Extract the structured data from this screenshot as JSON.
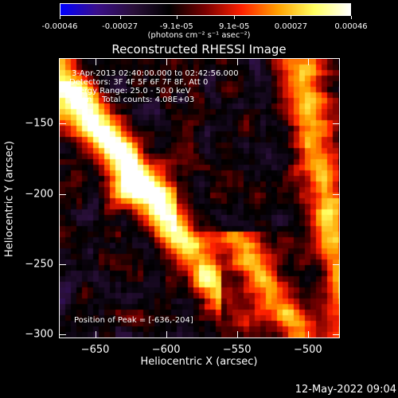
{
  "colorbar": {
    "tick_labels": [
      "-0.00046",
      "-0.00027",
      "-9.1e-05",
      "9.1e-05",
      "0.00027",
      "0.00046"
    ],
    "tick_values": [
      -0.00046,
      -0.00027,
      -9.1e-05,
      9.1e-05,
      0.00027,
      0.00046
    ],
    "range": [
      -0.00046,
      0.00046
    ],
    "units_label": "(photons cm⁻² s⁻¹ asec⁻²)",
    "colors": [
      "#0000ff",
      "#3a0f8a",
      "#2a0f3a",
      "#000000",
      "#7a0000",
      "#ff2000",
      "#ffa000",
      "#ffff60",
      "#ffffff"
    ]
  },
  "chart_data": {
    "type": "heatmap",
    "title": "Reconstructed RHESSI Image",
    "xlabel": "Heliocentric X (arcsec)",
    "ylabel": "Heliocentric Y (arcsec)",
    "xlim": [
      -675,
      -478
    ],
    "ylim": [
      -302,
      -104
    ],
    "x_ticks": [
      -650,
      -600,
      -550,
      -500
    ],
    "y_ticks": [
      -150,
      -200,
      -250,
      -300
    ],
    "x_tick_labels": [
      "-650",
      "-600",
      "-550",
      "-500"
    ],
    "y_tick_labels": [
      "-150",
      "-200",
      "-250",
      "-300"
    ],
    "peak_position": [
      -636,
      -204
    ],
    "info_lines": [
      " 3-Apr-2013 02:40:00.000 to 02:42:56.000",
      "Detectors: 3F 4F 5F 6F 7F 8F, Att 0",
      "Energy Range: 25.0 - 50.0 keV",
      "Clean    Total counts: 4.08E+03"
    ],
    "peak_label": "Position of Peak = [-636,-204]"
  },
  "footer": {
    "timestamp": "12-May-2022 09:04"
  }
}
